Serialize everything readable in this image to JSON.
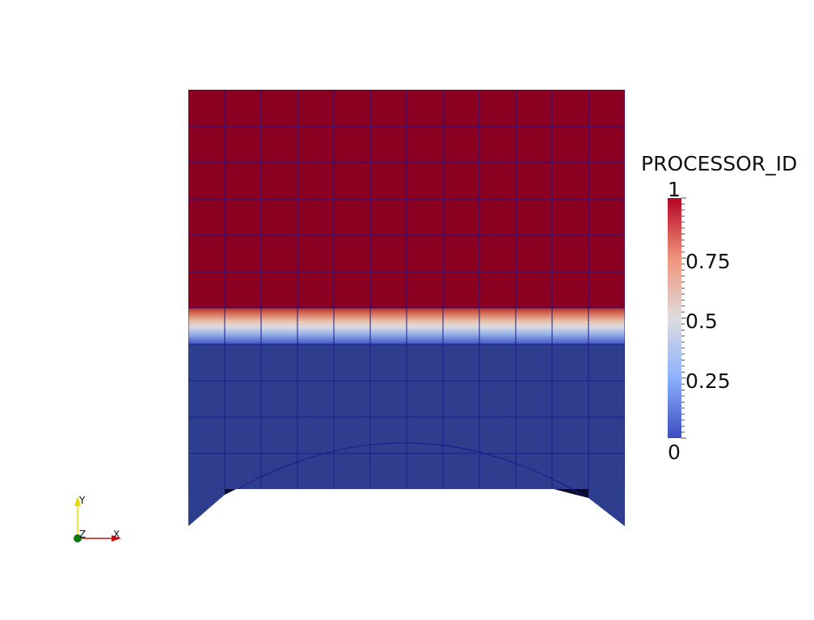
{
  "scalar_bar": {
    "title": "PROCESSOR_ID",
    "range": [
      0,
      1
    ],
    "labels": {
      "max": "1",
      "t075": "0.75",
      "t050": "0.5",
      "t025": "0.25",
      "min": "0"
    },
    "colors": {
      "low": "#3b4cc0",
      "mid": "#dddddd",
      "high": "#b40426"
    }
  },
  "mesh": {
    "upper_region_processor_id": 1,
    "lower_region_processor_id": 0,
    "colors": {
      "upper": "#8b0020",
      "lower": "#2f3d8f",
      "grid_line": "#1a1a8c"
    }
  },
  "orientation_axes": {
    "y_label": "Y",
    "z_label": "Z",
    "x_label": "X",
    "colors": {
      "x": "#cc1111",
      "y": "#e8d800",
      "z": "#117711"
    }
  }
}
